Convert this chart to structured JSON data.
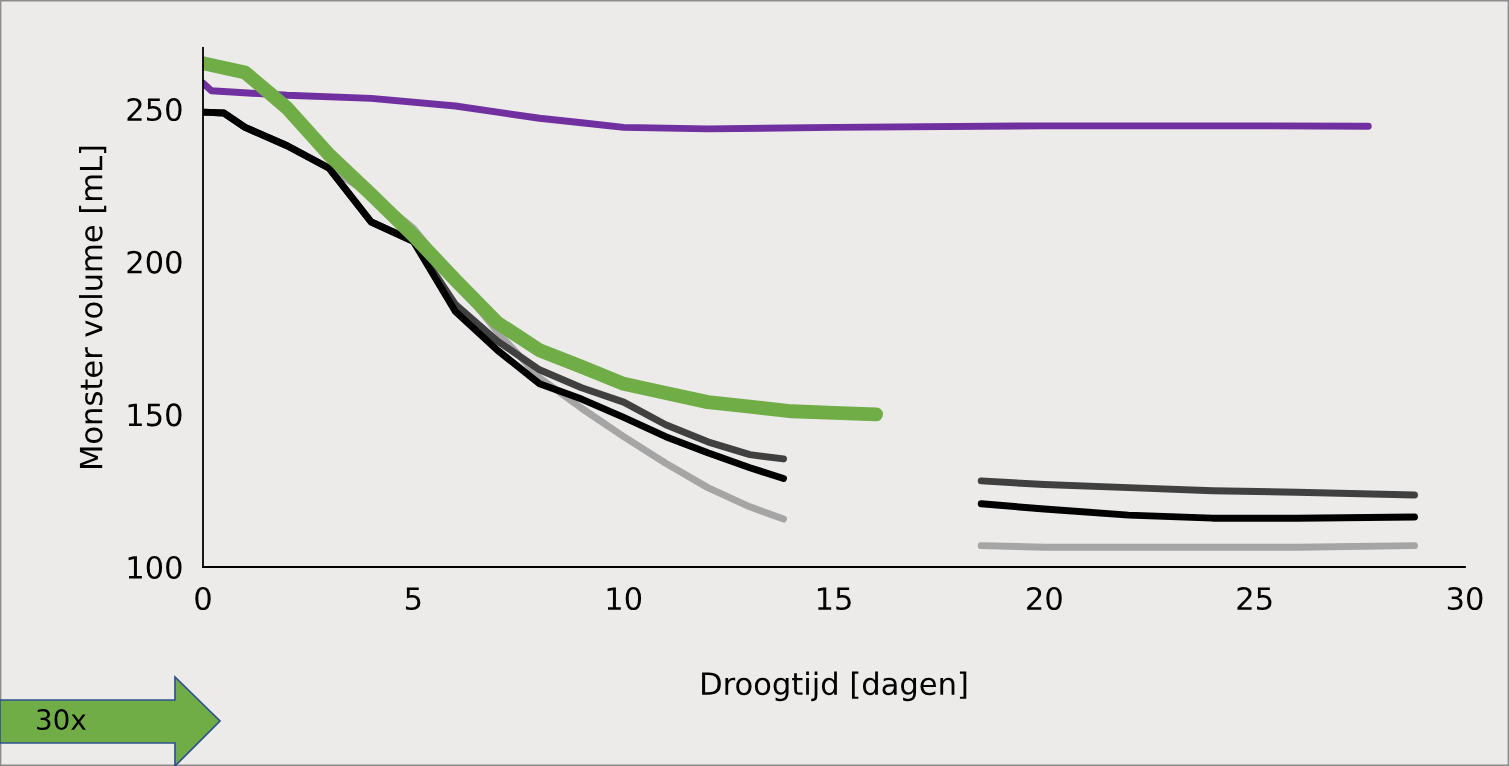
{
  "chart_data": {
    "type": "line",
    "xlabel": "Droogtijd [dagen]",
    "ylabel": "Monster volume [mL]",
    "xlim": [
      0,
      30
    ],
    "xticks": [
      0,
      5,
      10,
      15,
      20,
      25,
      30
    ],
    "ylim": [
      100,
      270
    ],
    "yticks": [
      100,
      150,
      200,
      250
    ],
    "grid": false,
    "legend": false,
    "marker": "none",
    "line_style": "solid",
    "annotations": [
      "30x"
    ],
    "series": [
      {
        "color": "#a5a5a5",
        "x": [
          0,
          0.5,
          1,
          2,
          3,
          4,
          5,
          7,
          8,
          9,
          10,
          11,
          12,
          13,
          13.8,
          16,
          18.5,
          20,
          22,
          24,
          26,
          28.8
        ],
        "values": [
          249,
          248.7,
          244,
          238,
          230.6,
          222,
          211,
          177,
          162,
          152,
          142.7,
          134,
          126,
          119.7,
          115.7,
          null,
          107,
          106.5,
          106.5,
          106.5,
          106.5,
          107
        ]
      },
      {
        "color": "#404040",
        "x": [
          0,
          0.5,
          1,
          2,
          3,
          4,
          5,
          6,
          7,
          8,
          9,
          10,
          11,
          12,
          13,
          13.8,
          16,
          18.5,
          20,
          22,
          24,
          26,
          28.8
        ],
        "values": [
          249,
          248.7,
          244,
          238,
          230.6,
          213,
          206.7,
          186,
          174,
          164.6,
          158.7,
          154,
          146.6,
          141,
          136.8,
          135.4,
          null,
          128.2,
          127,
          126,
          125,
          124.5,
          123.6
        ]
      },
      {
        "color": "#000000",
        "x": [
          0,
          0.5,
          1,
          2,
          3,
          4,
          5,
          6,
          7,
          8,
          9,
          10,
          11,
          12,
          13,
          13.8,
          16,
          18.5,
          20,
          22,
          24,
          26,
          28.8
        ],
        "values": [
          249,
          248.7,
          244,
          238,
          230.6,
          213,
          206.7,
          183.7,
          171,
          160,
          155,
          149,
          142.7,
          137.4,
          132.5,
          129,
          null,
          120.7,
          119,
          117,
          116,
          116,
          116.4
        ]
      },
      {
        "color": "#7030a0",
        "x": [
          0,
          0.2,
          2,
          4,
          6,
          7,
          8,
          9,
          10,
          12,
          15,
          20,
          25,
          27.7
        ],
        "values": [
          258.5,
          256,
          254.5,
          253.5,
          251,
          249,
          247,
          245.5,
          244,
          243.5,
          244,
          244.5,
          244.5,
          244.4
        ]
      },
      {
        "color": "#70ad47",
        "x": [
          0,
          1,
          2,
          3,
          4,
          5,
          6,
          7,
          8,
          9,
          10,
          11,
          12,
          13,
          14,
          15,
          16
        ],
        "values": [
          265,
          262,
          250.3,
          235,
          222,
          208.6,
          194,
          180,
          171,
          165.6,
          160,
          157,
          154,
          152.5,
          151,
          150.5,
          150
        ]
      }
    ]
  }
}
